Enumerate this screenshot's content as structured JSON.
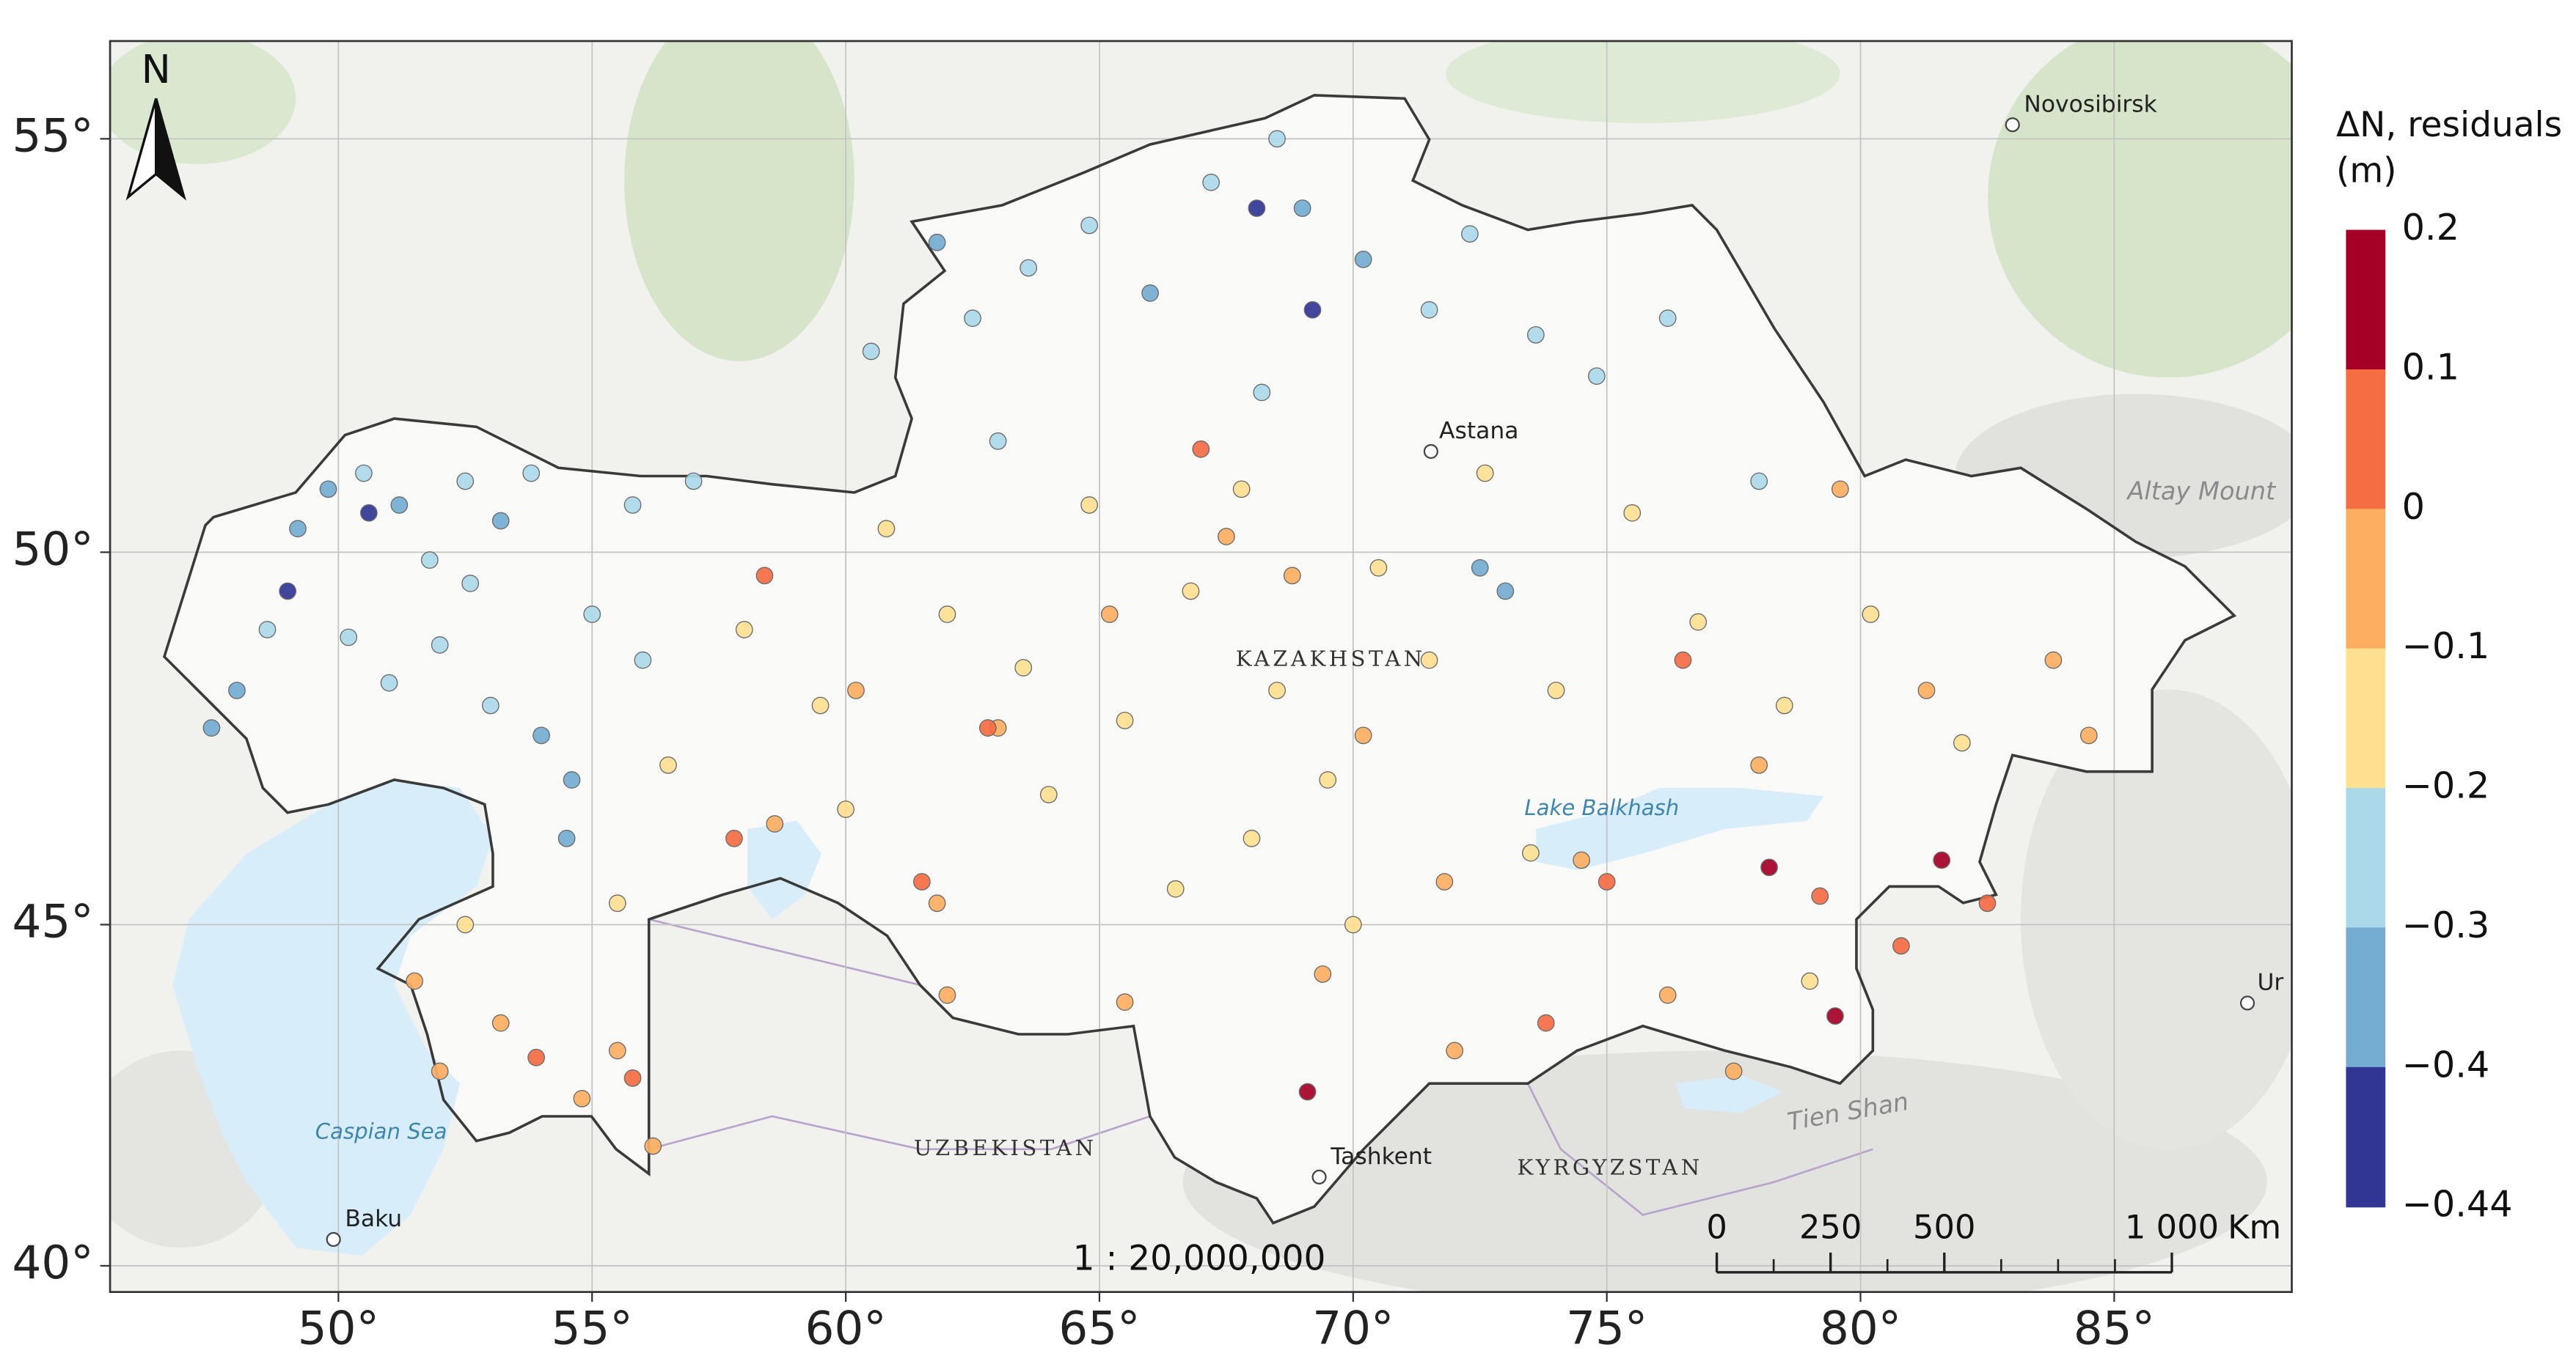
{
  "map": {
    "north": "N",
    "scale_text": "1 : 20,000,000",
    "lonlim": [
      45.5,
      88.5
    ],
    "latlim": [
      39.6,
      56.1
    ],
    "grid": true,
    "lon_ticks": [
      {
        "value": 50,
        "label": "50°"
      },
      {
        "value": 55,
        "label": "55°"
      },
      {
        "value": 60,
        "label": "60°"
      },
      {
        "value": 65,
        "label": "65°"
      },
      {
        "value": 70,
        "label": "70°"
      },
      {
        "value": 75,
        "label": "75°"
      },
      {
        "value": 80,
        "label": "80°"
      },
      {
        "value": 85,
        "label": "85°"
      }
    ],
    "lat_ticks": [
      {
        "value": 40,
        "label": "40°"
      },
      {
        "value": 45,
        "label": "45°"
      },
      {
        "value": 50,
        "label": "50°"
      },
      {
        "value": 55,
        "label": "55°"
      }
    ],
    "labels": [
      "Novosibirsk",
      "Astana",
      "KAZAKHSTAN",
      "Lake Balkhash",
      "Caspian Sea",
      "Baku",
      "UZBEKISTAN",
      "Tashkent",
      "KYRGYZSTAN",
      "Tien Shan",
      "Altay Mount",
      "Ur"
    ],
    "legend": {
      "title": "ΔN, residuals (m)",
      "ticks": [
        0.2,
        0.1,
        0,
        {
          "value": -0.1,
          "label": "−0.1"
        },
        {
          "value": -0.2,
          "label": "−0.2"
        },
        {
          "value": -0.3,
          "label": "−0.3"
        },
        {
          "value": -0.4,
          "label": "−0.4"
        },
        {
          "value": -0.44,
          "label": "−0.44"
        }
      ],
      "colors": [
        "#a50026",
        "#f46d43",
        "#fdae61",
        "#fee090",
        "#abd9e9",
        "#74add1",
        "#313695"
      ]
    },
    "scale_bar": {
      "ticks": [
        0,
        250,
        500,
        {
          "value": 1000,
          "label": "1 000"
        }
      ],
      "unit": "Km"
    },
    "points": [
      {
        "lon": 48.0,
        "lat": 48.2,
        "value": -0.32
      },
      {
        "lon": 48.6,
        "lat": 49.0,
        "value": -0.28
      },
      {
        "lon": 49.2,
        "lat": 50.3,
        "value": -0.35
      },
      {
        "lon": 49.8,
        "lat": 50.8,
        "value": -0.31
      },
      {
        "lon": 50.5,
        "lat": 51.0,
        "value": -0.26
      },
      {
        "lon": 51.2,
        "lat": 50.6,
        "value": -0.36
      },
      {
        "lon": 51.8,
        "lat": 49.9,
        "value": -0.29
      },
      {
        "lon": 52.5,
        "lat": 50.9,
        "value": -0.27
      },
      {
        "lon": 53.2,
        "lat": 50.4,
        "value": -0.33
      },
      {
        "lon": 53.8,
        "lat": 51.0,
        "value": -0.25
      },
      {
        "lon": 50.2,
        "lat": 48.9,
        "value": -0.27
      },
      {
        "lon": 51.0,
        "lat": 48.3,
        "value": -0.3
      },
      {
        "lon": 52.0,
        "lat": 48.8,
        "value": -0.24
      },
      {
        "lon": 53.0,
        "lat": 48.0,
        "value": -0.28
      },
      {
        "lon": 54.0,
        "lat": 47.6,
        "value": -0.34
      },
      {
        "lon": 54.6,
        "lat": 47.0,
        "value": -0.31
      },
      {
        "lon": 47.5,
        "lat": 47.7,
        "value": -0.36
      },
      {
        "lon": 52.6,
        "lat": 49.6,
        "value": -0.26
      },
      {
        "lon": 55.0,
        "lat": 49.2,
        "value": -0.25
      },
      {
        "lon": 56.0,
        "lat": 48.6,
        "value": -0.23
      },
      {
        "lon": 55.8,
        "lat": 50.6,
        "value": -0.27
      },
      {
        "lon": 57.0,
        "lat": 50.9,
        "value": -0.29
      },
      {
        "lon": 54.5,
        "lat": 46.2,
        "value": -0.32
      },
      {
        "lon": 49.0,
        "lat": 49.5,
        "value": -0.42
      },
      {
        "lon": 50.6,
        "lat": 50.5,
        "value": -0.41
      },
      {
        "lon": 61.8,
        "lat": 53.8,
        "value": -0.31
      },
      {
        "lon": 62.5,
        "lat": 52.9,
        "value": -0.27
      },
      {
        "lon": 63.6,
        "lat": 53.5,
        "value": -0.25
      },
      {
        "lon": 64.8,
        "lat": 54.0,
        "value": -0.29
      },
      {
        "lon": 66.0,
        "lat": 53.2,
        "value": -0.34
      },
      {
        "lon": 67.2,
        "lat": 54.5,
        "value": -0.28
      },
      {
        "lon": 68.5,
        "lat": 55.0,
        "value": -0.26
      },
      {
        "lon": 69.0,
        "lat": 54.2,
        "value": -0.36
      },
      {
        "lon": 70.2,
        "lat": 53.6,
        "value": -0.32
      },
      {
        "lon": 71.5,
        "lat": 53.0,
        "value": -0.27
      },
      {
        "lon": 72.3,
        "lat": 53.9,
        "value": -0.23
      },
      {
        "lon": 73.6,
        "lat": 52.7,
        "value": -0.26
      },
      {
        "lon": 74.8,
        "lat": 52.2,
        "value": -0.29
      },
      {
        "lon": 76.2,
        "lat": 52.9,
        "value": -0.25
      },
      {
        "lon": 63.0,
        "lat": 51.4,
        "value": -0.24
      },
      {
        "lon": 72.5,
        "lat": 49.8,
        "value": -0.33
      },
      {
        "lon": 73.0,
        "lat": 49.5,
        "value": -0.36
      },
      {
        "lon": 78.0,
        "lat": 50.9,
        "value": -0.22
      },
      {
        "lon": 60.5,
        "lat": 52.5,
        "value": -0.27
      },
      {
        "lon": 68.2,
        "lat": 52.0,
        "value": -0.25
      },
      {
        "lon": 68.1,
        "lat": 54.2,
        "value": -0.43
      },
      {
        "lon": 69.2,
        "lat": 53.0,
        "value": -0.42
      },
      {
        "lon": 58.0,
        "lat": 49.0,
        "value": -0.15
      },
      {
        "lon": 59.5,
        "lat": 48.0,
        "value": -0.17
      },
      {
        "lon": 60.8,
        "lat": 50.3,
        "value": -0.13
      },
      {
        "lon": 62.0,
        "lat": 49.2,
        "value": -0.18
      },
      {
        "lon": 63.5,
        "lat": 48.5,
        "value": -0.14
      },
      {
        "lon": 64.8,
        "lat": 50.6,
        "value": -0.16
      },
      {
        "lon": 65.5,
        "lat": 47.8,
        "value": -0.12
      },
      {
        "lon": 66.8,
        "lat": 49.5,
        "value": -0.19
      },
      {
        "lon": 67.8,
        "lat": 50.8,
        "value": -0.15
      },
      {
        "lon": 68.5,
        "lat": 48.2,
        "value": -0.11
      },
      {
        "lon": 69.5,
        "lat": 47.0,
        "value": -0.16
      },
      {
        "lon": 70.5,
        "lat": 49.8,
        "value": -0.14
      },
      {
        "lon": 71.5,
        "lat": 48.6,
        "value": -0.17
      },
      {
        "lon": 72.6,
        "lat": 51.0,
        "value": -0.12
      },
      {
        "lon": 74.0,
        "lat": 48.2,
        "value": -0.15
      },
      {
        "lon": 75.5,
        "lat": 50.5,
        "value": -0.18
      },
      {
        "lon": 76.8,
        "lat": 49.1,
        "value": -0.13
      },
      {
        "lon": 78.5,
        "lat": 48.0,
        "value": -0.16
      },
      {
        "lon": 80.2,
        "lat": 49.2,
        "value": -0.14
      },
      {
        "lon": 82.0,
        "lat": 47.5,
        "value": -0.17
      },
      {
        "lon": 66.5,
        "lat": 45.5,
        "value": -0.15
      },
      {
        "lon": 68.0,
        "lat": 46.2,
        "value": -0.13
      },
      {
        "lon": 70.0,
        "lat": 45.0,
        "value": -0.18
      },
      {
        "lon": 56.5,
        "lat": 47.2,
        "value": -0.16
      },
      {
        "lon": 55.5,
        "lat": 45.3,
        "value": -0.19
      },
      {
        "lon": 52.5,
        "lat": 45.0,
        "value": -0.14
      },
      {
        "lon": 64.0,
        "lat": 46.8,
        "value": -0.12
      },
      {
        "lon": 73.5,
        "lat": 46.0,
        "value": -0.17
      },
      {
        "lon": 60.0,
        "lat": 46.6,
        "value": -0.15
      },
      {
        "lon": 79.0,
        "lat": 44.2,
        "value": -0.19
      },
      {
        "lon": 51.5,
        "lat": 44.2,
        "value": -0.05
      },
      {
        "lon": 53.2,
        "lat": 43.6,
        "value": -0.08
      },
      {
        "lon": 54.8,
        "lat": 42.5,
        "value": -0.03
      },
      {
        "lon": 55.5,
        "lat": 43.2,
        "value": -0.06
      },
      {
        "lon": 52.0,
        "lat": 42.9,
        "value": -0.09
      },
      {
        "lon": 56.2,
        "lat": 41.8,
        "value": -0.04
      },
      {
        "lon": 58.6,
        "lat": 46.4,
        "value": -0.07
      },
      {
        "lon": 60.2,
        "lat": 48.2,
        "value": -0.02
      },
      {
        "lon": 61.8,
        "lat": 45.3,
        "value": -0.06
      },
      {
        "lon": 63.0,
        "lat": 47.7,
        "value": -0.05
      },
      {
        "lon": 65.2,
        "lat": 49.2,
        "value": -0.08
      },
      {
        "lon": 67.5,
        "lat": 50.2,
        "value": -0.04
      },
      {
        "lon": 68.8,
        "lat": 49.7,
        "value": -0.09
      },
      {
        "lon": 70.2,
        "lat": 47.6,
        "value": -0.06
      },
      {
        "lon": 71.8,
        "lat": 45.6,
        "value": -0.03
      },
      {
        "lon": 74.5,
        "lat": 45.9,
        "value": -0.05
      },
      {
        "lon": 76.2,
        "lat": 44.0,
        "value": -0.07
      },
      {
        "lon": 78.0,
        "lat": 47.2,
        "value": -0.02
      },
      {
        "lon": 79.6,
        "lat": 50.8,
        "value": -0.06
      },
      {
        "lon": 81.3,
        "lat": 48.2,
        "value": -0.08
      },
      {
        "lon": 83.8,
        "lat": 48.6,
        "value": -0.05
      },
      {
        "lon": 84.5,
        "lat": 47.6,
        "value": -0.04
      },
      {
        "lon": 77.5,
        "lat": 42.9,
        "value": -0.03
      },
      {
        "lon": 72.0,
        "lat": 43.2,
        "value": -0.06
      },
      {
        "lon": 65.5,
        "lat": 43.9,
        "value": -0.08
      },
      {
        "lon": 62.0,
        "lat": 44.0,
        "value": -0.05
      },
      {
        "lon": 69.4,
        "lat": 44.3,
        "value": -0.07
      },
      {
        "lon": 61.5,
        "lat": 45.6,
        "value": 0.04
      },
      {
        "lon": 62.8,
        "lat": 47.7,
        "value": 0.06
      },
      {
        "lon": 57.8,
        "lat": 46.2,
        "value": 0.03
      },
      {
        "lon": 53.9,
        "lat": 43.1,
        "value": 0.05
      },
      {
        "lon": 55.8,
        "lat": 42.8,
        "value": 0.02
      },
      {
        "lon": 75.0,
        "lat": 45.6,
        "value": 0.05
      },
      {
        "lon": 79.2,
        "lat": 45.4,
        "value": 0.03
      },
      {
        "lon": 80.8,
        "lat": 44.7,
        "value": 0.07
      },
      {
        "lon": 82.5,
        "lat": 45.3,
        "value": 0.04
      },
      {
        "lon": 76.5,
        "lat": 48.6,
        "value": 0.02
      },
      {
        "lon": 73.8,
        "lat": 43.6,
        "value": 0.06
      },
      {
        "lon": 67.0,
        "lat": 51.3,
        "value": 0.03
      },
      {
        "lon": 58.4,
        "lat": 49.7,
        "value": 0.05
      },
      {
        "lon": 78.2,
        "lat": 45.8,
        "value": 0.15
      },
      {
        "lon": 81.6,
        "lat": 45.9,
        "value": 0.12
      },
      {
        "lon": 69.1,
        "lat": 42.6,
        "value": 0.14
      },
      {
        "lon": 79.5,
        "lat": 43.7,
        "value": 0.11
      }
    ]
  }
}
